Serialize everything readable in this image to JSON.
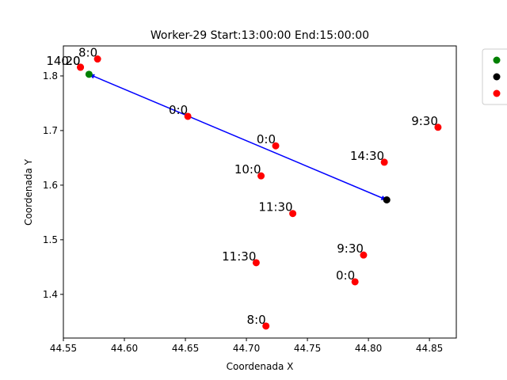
{
  "chart_data": {
    "type": "scatter",
    "title": "Worker-29 Start:13:00:00 End:15:00:00",
    "xlabel": "Coordenada X",
    "ylabel": "Coordenada Y",
    "xlim": [
      44.55,
      44.872
    ],
    "ylim": [
      1.32,
      1.855
    ],
    "xticks": [
      "44.55",
      "44.60",
      "44.65",
      "44.70",
      "44.75",
      "44.80",
      "44.85"
    ],
    "yticks": [
      "1.4",
      "1.5",
      "1.6",
      "1.7",
      "1.8"
    ],
    "grid": false,
    "legend": {
      "placement": "outside-top-right",
      "entry_colors": [
        "#008000",
        "#000000",
        "#ff0000"
      ]
    },
    "route": {
      "from": [
        44.571,
        1.803
      ],
      "to": [
        44.815,
        1.573
      ],
      "color": "#0000ff"
    },
    "start_point": {
      "x": 44.571,
      "y": 1.803,
      "color": "#008000"
    },
    "end_point": {
      "x": 44.815,
      "y": 1.573,
      "color": "#000000"
    },
    "tasks": {
      "color": "#ff0000",
      "points": [
        {
          "x": 44.578,
          "y": 1.831,
          "label": "8:0"
        },
        {
          "x": 44.564,
          "y": 1.816,
          "label": "0:0"
        },
        {
          "x": 44.564,
          "y": 1.816,
          "label": "14:20"
        },
        {
          "x": 44.652,
          "y": 1.726,
          "label": "0:0"
        },
        {
          "x": 44.857,
          "y": 1.706,
          "label": "9:30"
        },
        {
          "x": 44.724,
          "y": 1.672,
          "label": "0:0"
        },
        {
          "x": 44.813,
          "y": 1.642,
          "label": "14:30"
        },
        {
          "x": 44.712,
          "y": 1.617,
          "label": "10:0"
        },
        {
          "x": 44.738,
          "y": 1.548,
          "label": "11:30"
        },
        {
          "x": 44.796,
          "y": 1.472,
          "label": "9:30"
        },
        {
          "x": 44.708,
          "y": 1.458,
          "label": "11:30"
        },
        {
          "x": 44.789,
          "y": 1.423,
          "label": "0:0"
        },
        {
          "x": 44.716,
          "y": 1.342,
          "label": "8:0"
        }
      ]
    }
  }
}
